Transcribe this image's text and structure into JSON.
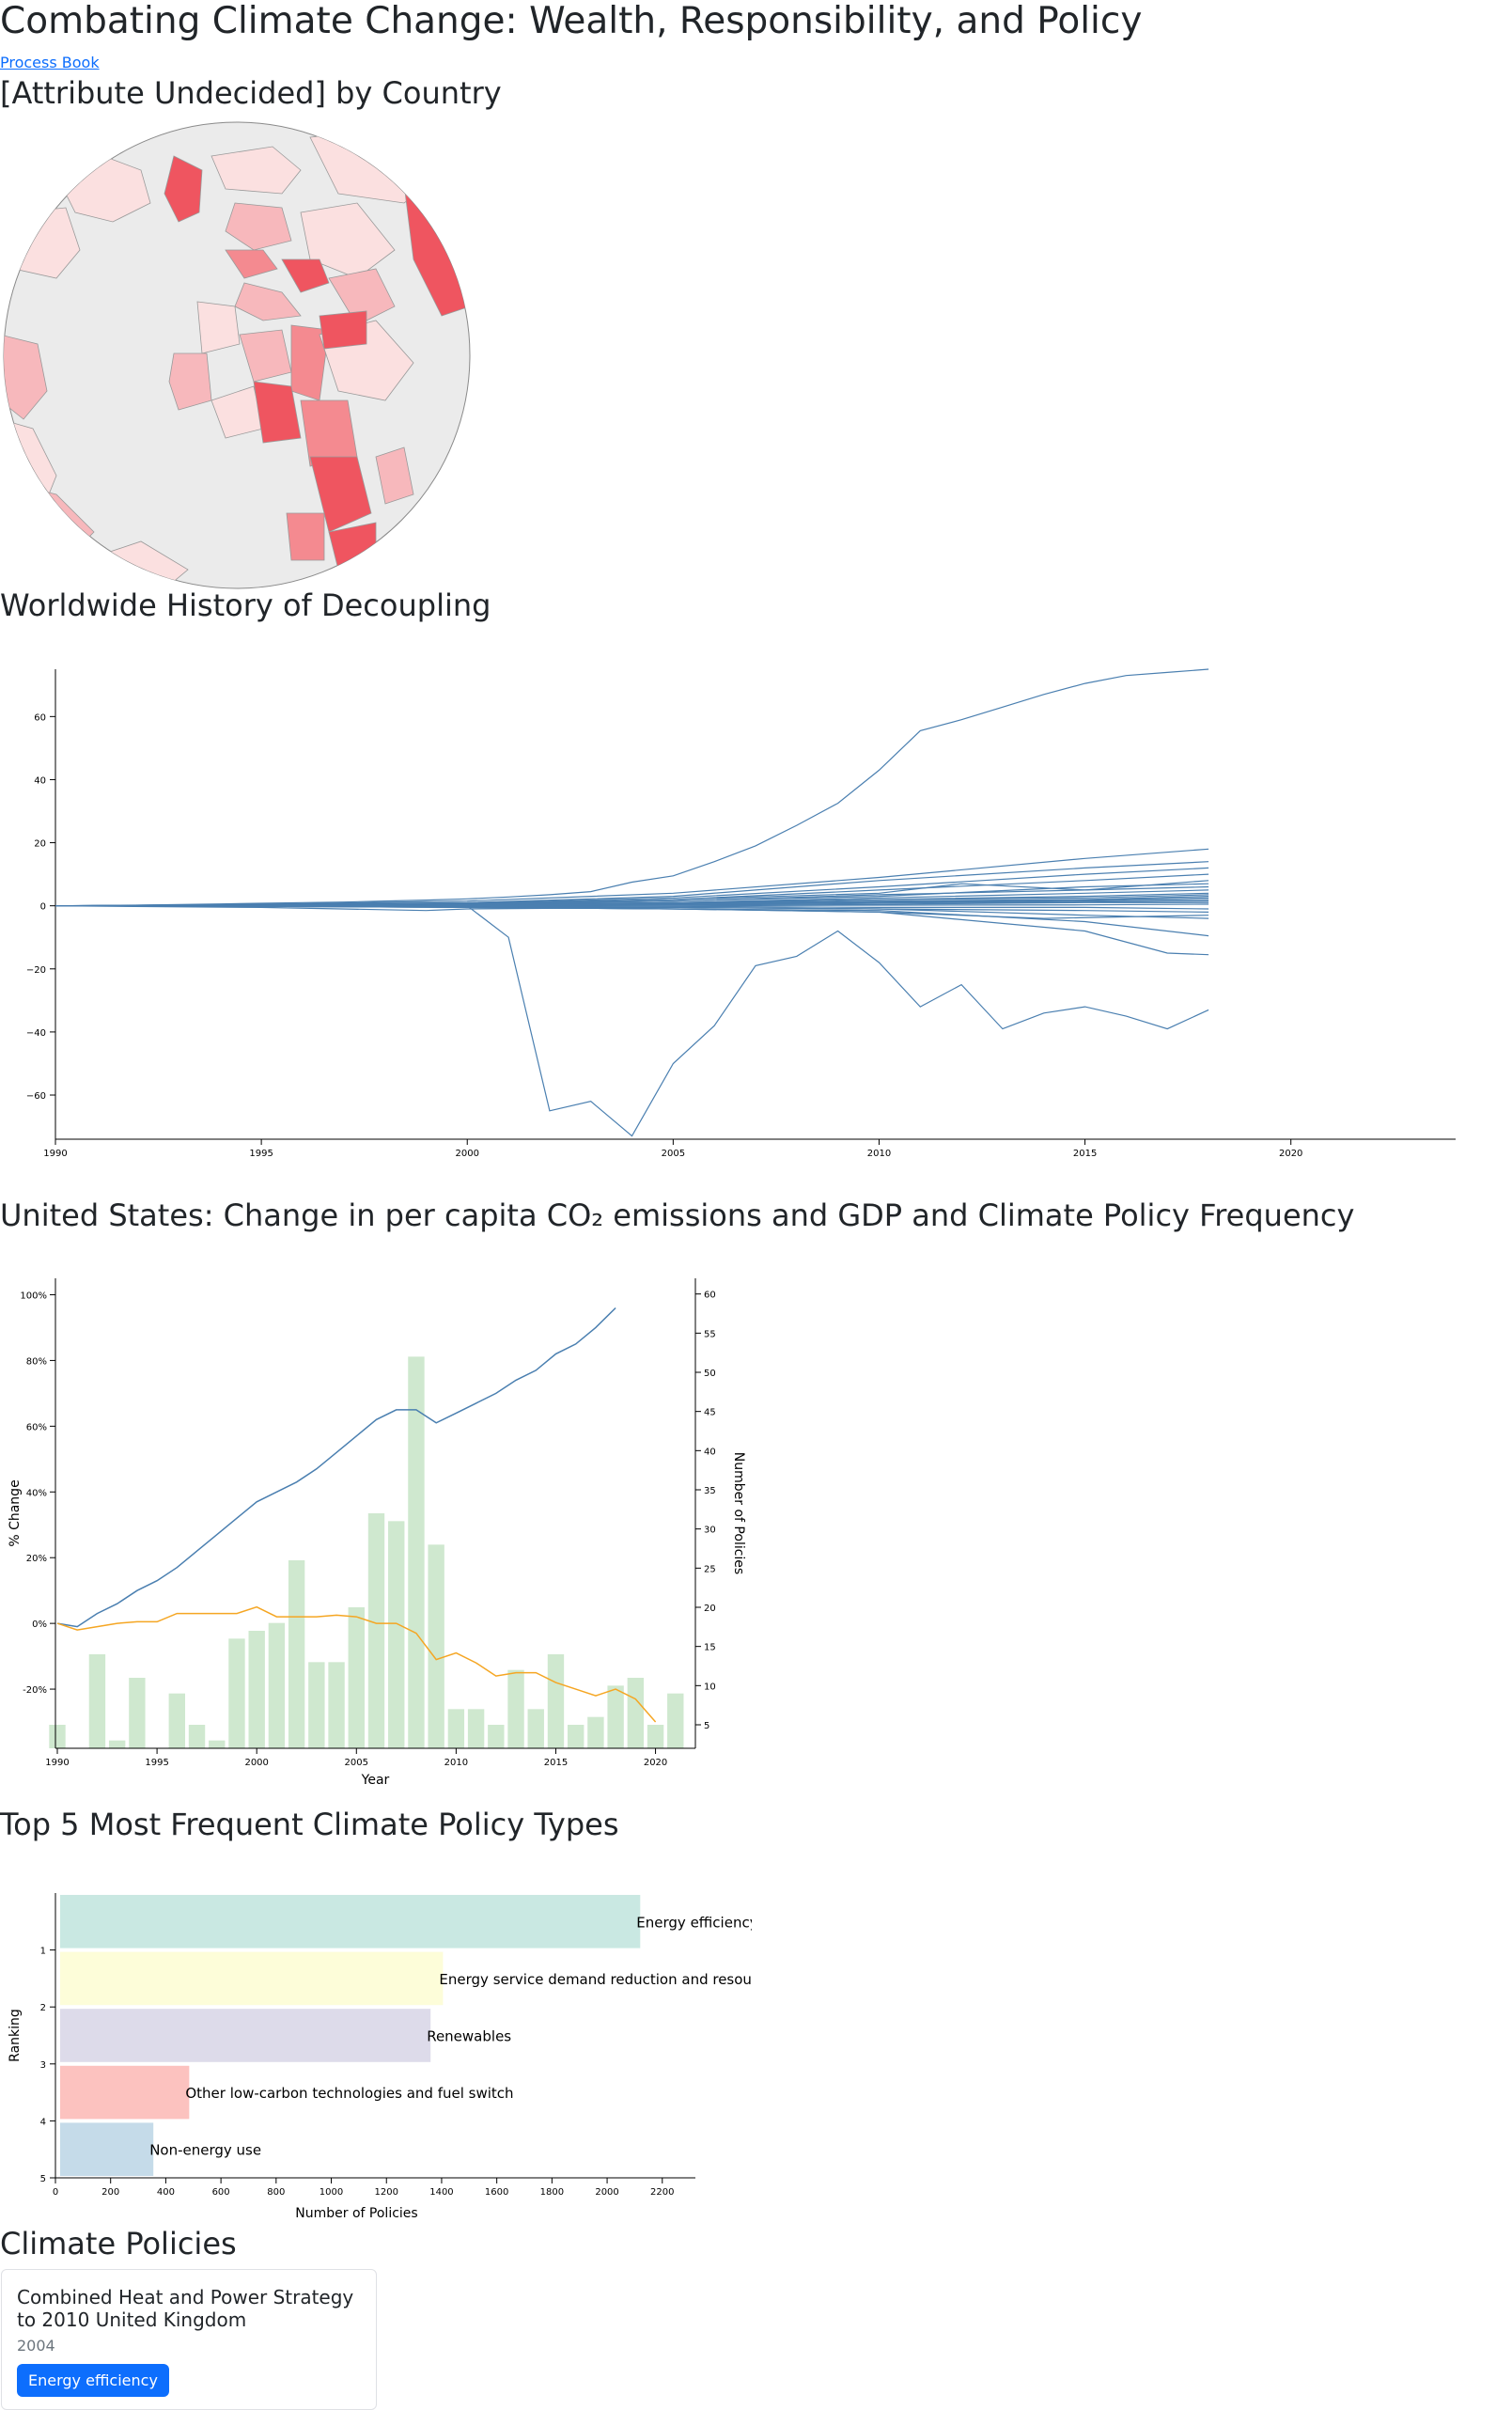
{
  "page": {
    "title": "Combating Climate Change: Wealth, Responsibility, and Policy",
    "process_book_link": "Process Book"
  },
  "globe": {
    "heading": "[Attribute Undecided] by Country",
    "ocean_color": "#ebebeb",
    "country_colors": [
      "#fbe0e0",
      "#f7b8bc",
      "#f48a90",
      "#ef5560"
    ]
  },
  "decoupling": {
    "heading": "Worldwide History of Decoupling",
    "chart_data": {
      "type": "line",
      "x_ticks": [
        1990,
        1995,
        2000,
        2005,
        2010,
        2015,
        2020
      ],
      "y_ticks": [
        -60,
        -40,
        -20,
        0,
        20,
        40,
        60
      ],
      "xlim": [
        1990,
        2024
      ],
      "ylim": [
        -74,
        75
      ],
      "line_color": "#4a7fb0",
      "series": [
        {
          "x": [
            1990,
            1991,
            1992,
            1993,
            1994,
            1995,
            1996,
            1997,
            1998,
            1999,
            2000,
            2001,
            2002,
            2003,
            2004,
            2005,
            2006,
            2007,
            2008,
            2009,
            2010,
            2011,
            2012,
            2013,
            2014,
            2015,
            2016,
            2017,
            2018
          ],
          "values": [
            0,
            0.1,
            0.2,
            0.4,
            0.6,
            0.8,
            1.0,
            1.2,
            1.5,
            1.8,
            2.2,
            2.8,
            3.5,
            4.5,
            7.5,
            9.5,
            14,
            19,
            25.5,
            32.5,
            43,
            55.5,
            59,
            63,
            67,
            70.5,
            73,
            74,
            75
          ]
        },
        {
          "x": [
            1990,
            1995,
            2000,
            2001,
            2002,
            2003,
            2004,
            2005,
            2006,
            2007,
            2008,
            2009,
            2010,
            2011,
            2012,
            2013,
            2014,
            2015,
            2016,
            2017,
            2018
          ],
          "values": [
            0,
            0,
            0,
            -10,
            -65,
            -62,
            -73,
            -50,
            -38,
            -19,
            -16,
            -8,
            -18,
            -32,
            -25,
            -39,
            -34,
            -32,
            -35,
            -39,
            -33
          ]
        },
        {
          "x": [
            1990,
            1995,
            2000,
            2005,
            2010,
            2015,
            2018
          ],
          "values": [
            0,
            0.5,
            1.5,
            4,
            9,
            15,
            18
          ]
        },
        {
          "x": [
            1990,
            1995,
            2000,
            2005,
            2010,
            2015,
            2018
          ],
          "values": [
            0,
            0.5,
            1,
            3,
            8,
            12,
            14
          ]
        },
        {
          "x": [
            1990,
            1995,
            2000,
            2005,
            2010,
            2015,
            2018
          ],
          "values": [
            0,
            0.2,
            0.8,
            2.5,
            6,
            10,
            12
          ]
        },
        {
          "x": [
            1990,
            1995,
            2000,
            2005,
            2010,
            2015,
            2018
          ],
          "values": [
            0,
            0.3,
            0.8,
            2,
            5,
            8,
            10
          ]
        },
        {
          "x": [
            1990,
            1995,
            2000,
            2005,
            2010,
            2012,
            2015,
            2018
          ],
          "values": [
            0,
            0.2,
            0.5,
            2,
            4,
            7,
            5,
            8
          ]
        },
        {
          "x": [
            1990,
            1995,
            2000,
            2005,
            2010,
            2015,
            2018
          ],
          "values": [
            0,
            0.3,
            0.6,
            1.5,
            3,
            6,
            7
          ]
        },
        {
          "x": [
            1990,
            1995,
            2000,
            2005,
            2010,
            2015,
            2018
          ],
          "values": [
            0,
            0.2,
            0.5,
            1,
            2.5,
            4,
            5
          ]
        },
        {
          "x": [
            1990,
            1995,
            2000,
            2005,
            2010,
            2015,
            2018
          ],
          "values": [
            0,
            0.1,
            0.4,
            1,
            2,
            3,
            4
          ]
        },
        {
          "x": [
            1990,
            1995,
            2000,
            2005,
            2010,
            2015,
            2018
          ],
          "values": [
            0,
            0.1,
            0.3,
            0.8,
            1.5,
            2,
            3
          ]
        },
        {
          "x": [
            1990,
            1995,
            2000,
            2005,
            2010,
            2015,
            2018
          ],
          "values": [
            0,
            0.1,
            0.2,
            0.5,
            1,
            1.5,
            2
          ]
        },
        {
          "x": [
            1990,
            1995,
            2000,
            2005,
            2010,
            2015,
            2018
          ],
          "values": [
            0,
            0,
            0.1,
            0.3,
            0.5,
            1,
            1
          ]
        },
        {
          "x": [
            1990,
            1995,
            2000,
            2005,
            2010,
            2015,
            2018
          ],
          "values": [
            0,
            0,
            0,
            0,
            0.2,
            0.3,
            0.5
          ]
        },
        {
          "x": [
            1990,
            1995,
            2000,
            2005,
            2010,
            2015,
            2018
          ],
          "values": [
            0,
            0,
            -0.1,
            -0.2,
            -0.5,
            -0.5,
            -1
          ]
        },
        {
          "x": [
            1990,
            1995,
            2000,
            2005,
            2010,
            2015,
            2018
          ],
          "values": [
            0,
            -0.1,
            -0.3,
            -0.5,
            -1,
            -1.5,
            -2
          ]
        },
        {
          "x": [
            1990,
            1995,
            2000,
            2005,
            2010,
            2014,
            2018
          ],
          "values": [
            0,
            -0.2,
            -0.5,
            -1,
            -2,
            -4,
            -3
          ]
        },
        {
          "x": [
            1990,
            1995,
            1999,
            2000,
            2005,
            2010,
            2015,
            2018
          ],
          "values": [
            0,
            -0.5,
            -1.5,
            -1,
            -0.5,
            -1,
            -3,
            -4
          ]
        },
        {
          "x": [
            1990,
            1995,
            2000,
            2005,
            2010,
            2015,
            2018
          ],
          "values": [
            0,
            -0.2,
            -0.5,
            -1,
            -1.5,
            -5,
            -9.5
          ]
        },
        {
          "x": [
            1990,
            1995,
            2000,
            2005,
            2010,
            2015,
            2017,
            2018
          ],
          "values": [
            0,
            -0.2,
            -0.5,
            -1,
            -2,
            -8,
            -15,
            -15.5
          ]
        },
        {
          "x": [
            1990,
            1995,
            2000,
            2005,
            2010,
            2015,
            2018
          ],
          "values": [
            0,
            0.2,
            0.5,
            1.5,
            3.5,
            5,
            6
          ]
        },
        {
          "x": [
            1990,
            1995,
            2000,
            2005,
            2010,
            2015,
            2018
          ],
          "values": [
            0,
            0.1,
            0.3,
            0.8,
            2,
            2.5,
            3.5
          ]
        },
        {
          "x": [
            1990,
            1995,
            2000,
            2005,
            2010,
            2015,
            2018
          ],
          "values": [
            0,
            0,
            0.2,
            0.6,
            1.2,
            1.8,
            2.5
          ]
        },
        {
          "x": [
            1990,
            1995,
            2000,
            2005,
            2010,
            2015,
            2018
          ],
          "values": [
            0,
            0,
            0.1,
            0.4,
            0.9,
            1.2,
            1.5
          ]
        }
      ]
    }
  },
  "us": {
    "heading": "United States: Change in per capita CO₂ emissions and GDP and Climate Policy Frequency",
    "chart_data": {
      "type": "bar+line",
      "xlabel": "Year",
      "ylabel_left": "% Change",
      "ylabel_right": "Number of Policies",
      "x_ticks": [
        1990,
        1995,
        2000,
        2005,
        2010,
        2015,
        2020
      ],
      "y_left_ticks": [
        "-20%",
        "0%",
        "20%",
        "40%",
        "60%",
        "80%",
        "100%"
      ],
      "y_left_tick_values": [
        -20,
        0,
        20,
        40,
        60,
        80,
        100
      ],
      "y_right_ticks": [
        5,
        10,
        15,
        20,
        25,
        30,
        35,
        40,
        45,
        50,
        55,
        60
      ],
      "xlim": [
        1990,
        2022
      ],
      "y_left_lim": [
        -38,
        105
      ],
      "y_right_lim": [
        2,
        62
      ],
      "bar_color": "#cfe8cf",
      "gdp_color": "#4a7fb0",
      "co2_color": "#f5a623",
      "policies": {
        "years": [
          1990,
          1991,
          1992,
          1993,
          1994,
          1995,
          1996,
          1997,
          1998,
          1999,
          2000,
          2001,
          2002,
          2003,
          2004,
          2005,
          2006,
          2007,
          2008,
          2009,
          2010,
          2011,
          2012,
          2013,
          2014,
          2015,
          2016,
          2017,
          2018,
          2019,
          2020,
          2021,
          2022
        ],
        "values": [
          5,
          0,
          14,
          3,
          11,
          0,
          9,
          5,
          3,
          16,
          17,
          18,
          26,
          13,
          13,
          20,
          32,
          31,
          52,
          28,
          7,
          7,
          5,
          12,
          7,
          14,
          5,
          6,
          10,
          11,
          5,
          9,
          0
        ]
      },
      "gdp_change": {
        "years": [
          1990,
          1991,
          1992,
          1993,
          1994,
          1995,
          1996,
          1997,
          1998,
          1999,
          2000,
          2001,
          2002,
          2003,
          2004,
          2005,
          2006,
          2007,
          2008,
          2009,
          2010,
          2011,
          2012,
          2013,
          2014,
          2015,
          2016,
          2017,
          2018
        ],
        "values": [
          0,
          -1,
          3,
          6,
          10,
          13,
          17,
          22,
          27,
          32,
          37,
          40,
          43,
          47,
          52,
          57,
          62,
          65,
          65,
          61,
          64,
          67,
          70,
          74,
          77,
          82,
          85,
          90,
          96
        ]
      },
      "co2_change": {
        "years": [
          1990,
          1991,
          1992,
          1993,
          1994,
          1995,
          1996,
          1997,
          1998,
          1999,
          2000,
          2001,
          2002,
          2003,
          2004,
          2005,
          2006,
          2007,
          2008,
          2009,
          2010,
          2011,
          2012,
          2013,
          2014,
          2015,
          2016,
          2017,
          2018,
          2019,
          2020
        ],
        "values": [
          0,
          -2,
          -1,
          0,
          0.5,
          0.5,
          3,
          3,
          3,
          3,
          5,
          2,
          2,
          2,
          2.5,
          2,
          0,
          0,
          -3,
          -11,
          -9,
          -12,
          -16,
          -15,
          -15,
          -18,
          -20,
          -22,
          -20,
          -23,
          -30
        ]
      }
    }
  },
  "top5": {
    "heading": "Top 5 Most Frequent Climate Policy Types",
    "chart_data": {
      "type": "bar",
      "orientation": "horizontal",
      "xlabel": "Number of Policies",
      "ylabel": "Ranking",
      "x_ticks": [
        0,
        200,
        400,
        600,
        800,
        1000,
        1200,
        1400,
        1600,
        1800,
        2000,
        2200
      ],
      "y_ticks": [
        1,
        2,
        3,
        4,
        5
      ],
      "xlim": [
        0,
        2320
      ],
      "categories": [
        "Energy efficiency",
        "Energy service demand reduction and resource efficiency",
        "Renewables",
        "Other low-carbon technologies and fuel switch",
        "Non-energy use"
      ],
      "values": [
        2120,
        1405,
        1360,
        485,
        355
      ],
      "colors": [
        "#c9e8e2",
        "#fdfdd9",
        "#dddbea",
        "#fcc2bf",
        "#c5dbe9"
      ]
    }
  },
  "policies": {
    "heading": "Climate Policies",
    "cards": [
      {
        "title": "Combined Heat and Power Strategy to 2010 United Kingdom",
        "year": "2004",
        "tag": "Energy efficiency"
      }
    ]
  }
}
